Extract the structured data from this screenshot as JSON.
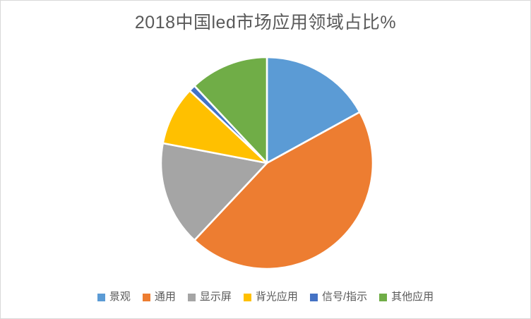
{
  "frame": {
    "background_color": "#ffffff",
    "border_color": "#d9d9d9"
  },
  "chart_data": {
    "type": "pie",
    "title": "2018中国led市场应用领域占比%",
    "categories": [
      "景观",
      "通用",
      "显示屏",
      "背光应用",
      "信号/指示",
      "其他应用"
    ],
    "values": [
      17,
      45,
      16,
      9,
      1,
      12
    ],
    "colors": [
      "#5b9bd5",
      "#ed7d31",
      "#a5a5a5",
      "#ffc000",
      "#4472c4",
      "#70ad47"
    ],
    "title_color": "#595959",
    "legend_text_color": "#595959",
    "legend_position": "bottom",
    "start_angle_deg": 0,
    "direction": "clockwise",
    "slice_separator_color": "#ffffff",
    "grid": "off"
  }
}
